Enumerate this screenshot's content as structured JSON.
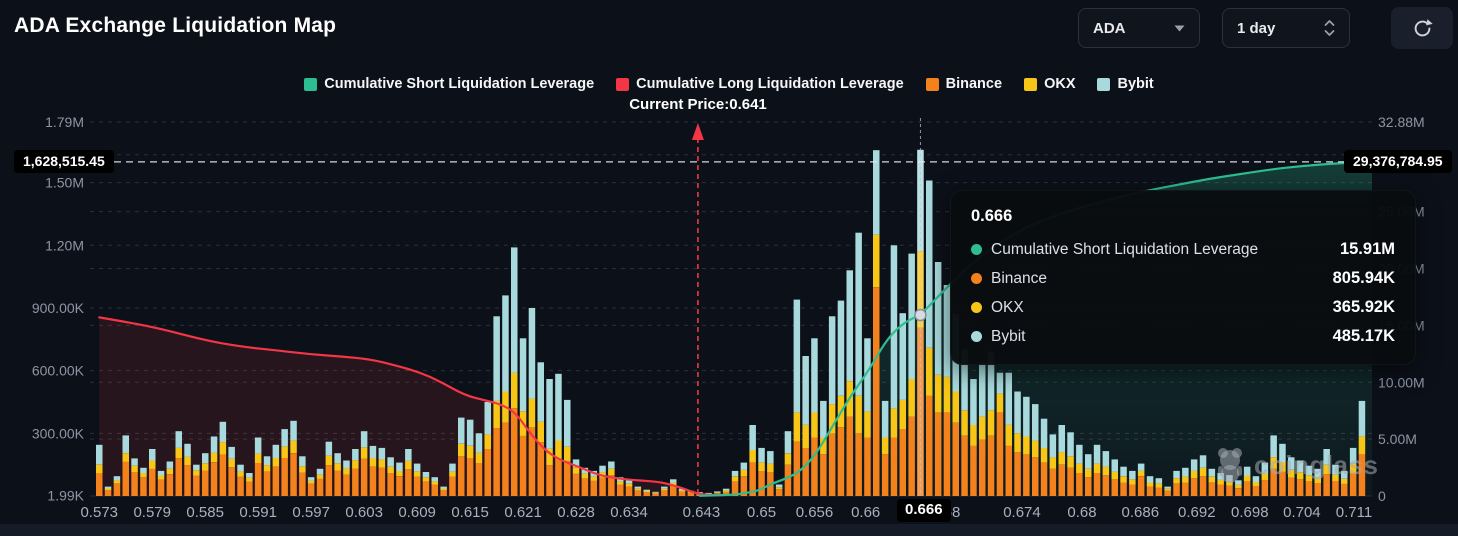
{
  "header": {
    "title": "ADA Exchange Liquidation Map",
    "symbol_select": {
      "value": "ADA"
    },
    "interval_select": {
      "value": "1 day"
    }
  },
  "legend": {
    "items": [
      {
        "label": "Cumulative Short Liquidation Leverage",
        "color": "#2ebd91"
      },
      {
        "label": "Cumulative Long Liquidation Leverage",
        "color": "#f23645"
      },
      {
        "label": "Binance",
        "color": "#f3811c"
      },
      {
        "label": "OKX",
        "color": "#f8c617"
      },
      {
        "label": "Bybit",
        "color": "#a8dadd"
      }
    ]
  },
  "current_price": {
    "label": "Current Price:0.641",
    "price": 0.641
  },
  "crosshair": {
    "x_label": "0.666",
    "left_value": "1,628,515.45",
    "right_value": "29,376,784.95"
  },
  "tooltip": {
    "title": "0.666",
    "rows": [
      {
        "label": "Cumulative Short Liquidation Leverage",
        "value": "15.91M",
        "color": "#2ebd91"
      },
      {
        "label": "Binance",
        "value": "805.94K",
        "color": "#f3811c"
      },
      {
        "label": "OKX",
        "value": "365.92K",
        "color": "#f8c617"
      },
      {
        "label": "Bybit",
        "value": "485.17K",
        "color": "#a8dadd"
      }
    ]
  },
  "watermark": {
    "text": "coinglass"
  },
  "chart_data": {
    "type": "bar",
    "subtype": "stacked bars + two cumulative lines",
    "title": "ADA Exchange Liquidation Map",
    "grid": true,
    "colors": {
      "binance": "#f3811c",
      "okx": "#f8c617",
      "bybit": "#a8dadd",
      "long": "#f23645",
      "short": "#2ebd91"
    },
    "y_left": {
      "unit": "K",
      "max": 1790,
      "ticks": [
        {
          "label": "1.79M",
          "v": 1790
        },
        {
          "label": "1.50M",
          "v": 1500
        },
        {
          "label": "1.20M",
          "v": 1200
        },
        {
          "label": "900.00K",
          "v": 900
        },
        {
          "label": "600.00K",
          "v": 600
        },
        {
          "label": "300.00K",
          "v": 300
        },
        {
          "label": "1.99K",
          "v": 1.99
        }
      ]
    },
    "y_right": {
      "unit": "M",
      "max": 32.88,
      "ticks": [
        {
          "label": "32.88M",
          "v": 32.88
        },
        {
          "label": "30.00M",
          "v": 30
        },
        {
          "label": "25.00M",
          "v": 25
        },
        {
          "label": "20.00M",
          "v": 20
        },
        {
          "label": "15.00M",
          "v": 15
        },
        {
          "label": "10.00M",
          "v": 10
        },
        {
          "label": "5.00M",
          "v": 5
        },
        {
          "label": "0",
          "v": 0
        }
      ]
    },
    "x_ticks": [
      {
        "label": "0.573",
        "i": 0
      },
      {
        "label": "0.579",
        "i": 6
      },
      {
        "label": "0.585",
        "i": 12
      },
      {
        "label": "0.591",
        "i": 18
      },
      {
        "label": "0.597",
        "i": 24
      },
      {
        "label": "0.603",
        "i": 30
      },
      {
        "label": "0.609",
        "i": 36
      },
      {
        "label": "0.615",
        "i": 42
      },
      {
        "label": "0.621",
        "i": 48
      },
      {
        "label": "0.628",
        "i": 54
      },
      {
        "label": "0.634",
        "i": 60
      },
      {
        "label": "0.643",
        "i": 68.2
      },
      {
        "label": "0.65",
        "i": 75
      },
      {
        "label": "0.656",
        "i": 81
      },
      {
        "label": "0.66",
        "i": 86.8
      },
      {
        "label": "0.668",
        "i": 95.4
      },
      {
        "label": "0.674",
        "i": 104.5
      },
      {
        "label": "0.68",
        "i": 111.3
      },
      {
        "label": "0.686",
        "i": 117.9
      },
      {
        "label": "0.692",
        "i": 124.3
      },
      {
        "label": "0.698",
        "i": 130.3
      },
      {
        "label": "0.704",
        "i": 136.2
      },
      {
        "label": "0.711",
        "i": 142.1
      }
    ],
    "bars": {
      "series_order": [
        "binance",
        "okx",
        "bybit"
      ],
      "unit": "K",
      "values": [
        [
          110,
          40,
          95
        ],
        [
          28,
          8,
          9
        ],
        [
          60,
          15,
          20
        ],
        [
          165,
          40,
          85
        ],
        [
          115,
          30,
          35
        ],
        [
          90,
          20,
          25
        ],
        [
          130,
          40,
          55
        ],
        [
          78,
          20,
          22
        ],
        [
          105,
          25,
          35
        ],
        [
          180,
          50,
          80
        ],
        [
          148,
          40,
          62
        ],
        [
          98,
          25,
          27
        ],
        [
          122,
          35,
          48
        ],
        [
          162,
          45,
          78
        ],
        [
          198,
          60,
          97
        ],
        [
          138,
          40,
          57
        ],
        [
          92,
          25,
          33
        ],
        [
          68,
          20,
          22
        ],
        [
          158,
          45,
          77
        ],
        [
          118,
          30,
          42
        ],
        [
          142,
          40,
          63
        ],
        [
          182,
          55,
          83
        ],
        [
          205,
          60,
          95
        ],
        [
          112,
          30,
          48
        ],
        [
          58,
          15,
          17
        ],
        [
          82,
          20,
          28
        ],
        [
          148,
          45,
          67
        ],
        [
          122,
          35,
          48
        ],
        [
          102,
          30,
          38
        ],
        [
          132,
          40,
          53
        ],
        [
          178,
          55,
          77
        ],
        [
          142,
          40,
          58
        ],
        [
          135,
          40,
          55
        ],
        [
          110,
          30,
          45
        ],
        [
          95,
          25,
          40
        ],
        [
          128,
          40,
          57
        ],
        [
          92,
          25,
          38
        ],
        [
          70,
          20,
          25
        ],
        [
          55,
          15,
          20
        ],
        [
          28,
          8,
          9
        ],
        [
          92,
          25,
          38
        ],
        [
          190,
          60,
          125
        ],
        [
          182,
          58,
          125
        ],
        [
          158,
          48,
          94
        ],
        [
          225,
          70,
          155
        ],
        [
          325,
          130,
          405
        ],
        [
          350,
          150,
          460
        ],
        [
          420,
          170,
          600
        ],
        [
          288,
          118,
          349
        ],
        [
          328,
          138,
          434
        ],
        [
          258,
          98,
          284
        ],
        [
          148,
          78,
          334
        ],
        [
          178,
          88,
          319
        ],
        [
          168,
          68,
          224
        ],
        [
          108,
          30,
          37
        ],
        [
          83,
          25,
          27
        ],
        [
          73,
          20,
          27
        ],
        [
          88,
          25,
          32
        ],
        [
          100,
          30,
          35
        ],
        [
          55,
          15,
          20
        ],
        [
          45,
          14,
          16
        ],
        [
          27,
          8,
          10
        ],
        [
          18,
          6,
          6
        ],
        [
          12,
          4,
          4
        ],
        [
          27,
          8,
          10
        ],
        [
          48,
          15,
          17
        ],
        [
          21,
          6,
          8
        ],
        [
          15,
          5,
          5
        ],
        [
          10,
          4,
          4
        ],
        [
          9,
          3,
          3
        ],
        [
          13,
          4,
          5
        ],
        [
          20,
          7,
          8
        ],
        [
          70,
          24,
          26
        ],
        [
          95,
          30,
          35
        ],
        [
          160,
          60,
          120
        ],
        [
          120,
          40,
          70
        ],
        [
          115,
          40,
          60
        ],
        [
          32,
          10,
          13
        ],
        [
          150,
          55,
          105
        ],
        [
          260,
          140,
          540
        ],
        [
          230,
          110,
          330
        ],
        [
          280,
          120,
          355
        ],
        [
          200,
          80,
          175
        ],
        [
          300,
          140,
          420
        ],
        [
          330,
          150,
          455
        ],
        [
          380,
          170,
          530
        ],
        [
          300,
          180,
          780
        ],
        [
          280,
          125,
          350
        ],
        [
          1000,
          250,
          405
        ],
        [
          200,
          80,
          175
        ],
        [
          280,
          140,
          780
        ],
        [
          320,
          140,
          415
        ],
        [
          380,
          180,
          600
        ],
        [
          806,
          366,
          485
        ],
        [
          480,
          230,
          800
        ],
        [
          400,
          180,
          540
        ],
        [
          400,
          170,
          440
        ],
        [
          350,
          150,
          370
        ],
        [
          290,
          120,
          290
        ],
        [
          240,
          100,
          220
        ],
        [
          270,
          110,
          260
        ],
        [
          290,
          120,
          280
        ],
        [
          400,
          90,
          100
        ],
        [
          240,
          100,
          250
        ],
        [
          210,
          90,
          200
        ],
        [
          200,
          85,
          190
        ],
        [
          185,
          80,
          175
        ],
        [
          160,
          70,
          140
        ],
        [
          130,
          55,
          110
        ],
        [
          150,
          60,
          130
        ],
        [
          135,
          55,
          115
        ],
        [
          110,
          45,
          90
        ],
        [
          90,
          40,
          70
        ],
        [
          110,
          45,
          90
        ],
        [
          100,
          40,
          75
        ],
        [
          80,
          35,
          60
        ],
        [
          65,
          30,
          45
        ],
        [
          55,
          25,
          40
        ],
        [
          95,
          25,
          35
        ],
        [
          45,
          20,
          30
        ],
        [
          40,
          20,
          25
        ],
        [
          25,
          10,
          10
        ],
        [
          60,
          25,
          35
        ],
        [
          65,
          28,
          42
        ],
        [
          85,
          35,
          55
        ],
        [
          95,
          40,
          60
        ],
        [
          65,
          27,
          38
        ],
        [
          55,
          22,
          33
        ],
        [
          50,
          20,
          30
        ],
        [
          38,
          15,
          22
        ],
        [
          70,
          28,
          42
        ],
        [
          48,
          19,
          28
        ],
        [
          75,
          32,
          53
        ],
        [
          130,
          55,
          105
        ],
        [
          115,
          48,
          87
        ],
        [
          88,
          37,
          60
        ],
        [
          80,
          34,
          56
        ],
        [
          70,
          29,
          46
        ],
        [
          62,
          26,
          42
        ],
        [
          105,
          45,
          75
        ],
        [
          72,
          30,
          48
        ],
        [
          58,
          24,
          38
        ],
        [
          108,
          46,
          76
        ],
        [
          200,
          85,
          170
        ]
      ]
    },
    "long_line": {
      "name": "Cumulative Long Liquidation Leverage",
      "axis": "left",
      "unit": "K",
      "points": [
        [
          0,
          855
        ],
        [
          3.5,
          830
        ],
        [
          7,
          800
        ],
        [
          12,
          745
        ],
        [
          16,
          715
        ],
        [
          20.5,
          695
        ],
        [
          24,
          678
        ],
        [
          27.3,
          668
        ],
        [
          30.7,
          655
        ],
        [
          34,
          620
        ],
        [
          36.3,
          592
        ],
        [
          38.6,
          548
        ],
        [
          41.4,
          482
        ],
        [
          43.7,
          458
        ],
        [
          45.4,
          440
        ],
        [
          47.1,
          402
        ],
        [
          48.8,
          300
        ],
        [
          50.5,
          218
        ],
        [
          52.2,
          172
        ],
        [
          54.4,
          138
        ],
        [
          56.7,
          98
        ],
        [
          59,
          82
        ],
        [
          61.2,
          74
        ],
        [
          63.5,
          68
        ],
        [
          65.8,
          42
        ],
        [
          67.5,
          14
        ],
        [
          68.6,
          6
        ],
        [
          70.5,
          4
        ]
      ]
    },
    "short_line": {
      "name": "Cumulative Short Liquidation Leverage",
      "axis": "right",
      "unit": "M",
      "points": [
        [
          68,
          0.02
        ],
        [
          70.3,
          0.06
        ],
        [
          72.5,
          0.15
        ],
        [
          74.8,
          0.5
        ],
        [
          75.9,
          1.0
        ],
        [
          78,
          1.6
        ],
        [
          79.4,
          2.2
        ],
        [
          81.1,
          3.6
        ],
        [
          83.1,
          6.2
        ],
        [
          85.1,
          8.8
        ],
        [
          87.2,
          11.1
        ],
        [
          89.2,
          13.8
        ],
        [
          91.2,
          15.3
        ],
        [
          93,
          15.91
        ],
        [
          95.2,
          17.7
        ],
        [
          97.5,
          19.5
        ],
        [
          99.7,
          21.0
        ],
        [
          102,
          22.3
        ],
        [
          105.4,
          23.8
        ],
        [
          108.8,
          24.8
        ],
        [
          112.2,
          25.6
        ],
        [
          115.6,
          26.3
        ],
        [
          119,
          26.9
        ],
        [
          122.4,
          27.4
        ],
        [
          125.8,
          27.9
        ],
        [
          129.2,
          28.3
        ],
        [
          132.6,
          28.7
        ],
        [
          136,
          29.0
        ],
        [
          139.4,
          29.2
        ],
        [
          142.8,
          29.35
        ],
        [
          144.5,
          29.38
        ]
      ]
    },
    "hover": {
      "bar_index": 93,
      "marker_value_m": 15.91
    },
    "current_price_index": 67.8
  }
}
